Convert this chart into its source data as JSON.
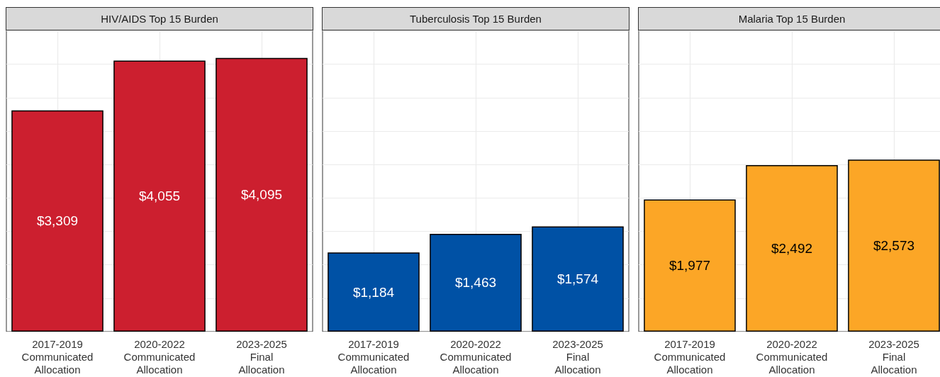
{
  "chart_data": [
    {
      "type": "bar",
      "title": "HIV/AIDS Top 15 Burden",
      "categories": [
        "2017-2019\nCommunicated\nAllocation",
        "2020-2022\nCommunicated\nAllocation",
        "2023-2025\nFinal\nAllocation"
      ],
      "values": [
        3309,
        4055,
        4095
      ],
      "value_labels": [
        "$3,309",
        "$4,055",
        "$4,095"
      ],
      "color": "#cc1f2f",
      "tick_labels": "x",
      "grid": true
    },
    {
      "type": "bar",
      "title": "Tuberculosis Top 15 Burden",
      "categories": [
        "2017-2019\nCommunicated\nAllocation",
        "2020-2022\nCommunicated\nAllocation",
        "2023-2025\nFinal\nAllocation"
      ],
      "values": [
        1184,
        1463,
        1574
      ],
      "value_labels": [
        "$1,184",
        "$1,463",
        "$1,574"
      ],
      "color": "#0051a5",
      "tick_labels": "x",
      "grid": true
    },
    {
      "type": "bar",
      "title": "Malaria Top 15 Burden",
      "categories": [
        "2017-2019\nCommunicated\nAllocation",
        "2020-2022\nCommunicated\nAllocation",
        "2023-2025\nFinal\nAllocation"
      ],
      "values": [
        1977,
        2492,
        2573
      ],
      "value_labels": [
        "$1,977",
        "$2,492",
        "$2,573"
      ],
      "color": "#fca626",
      "tick_labels": "x",
      "grid": true
    }
  ]
}
